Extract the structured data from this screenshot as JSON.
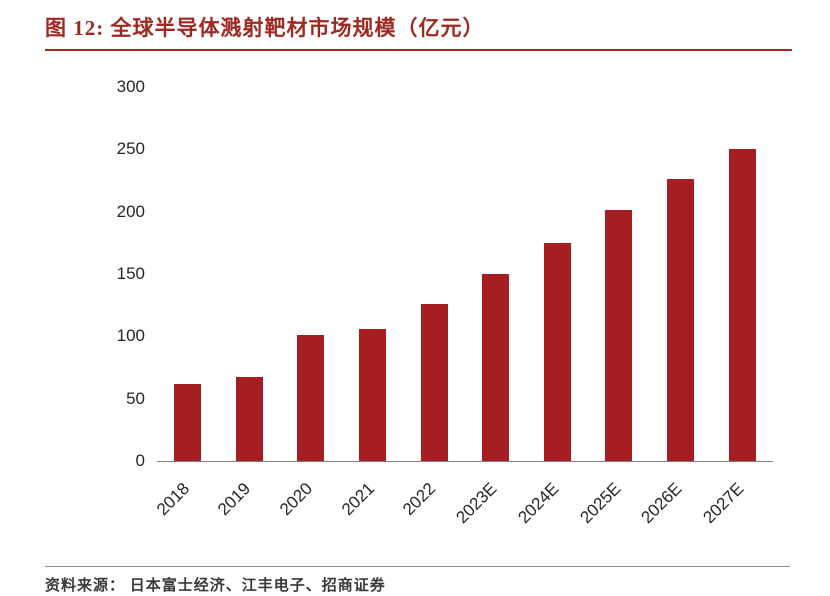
{
  "header": {
    "title": "图 12:  全球半导体溅射靶材市场规模（亿元）"
  },
  "footer": {
    "source": "资料来源：  日本富士经济、江丰电子、招商证券"
  },
  "colors": {
    "accent": "#9E2921",
    "bar": "#A71E22"
  },
  "chart_data": {
    "type": "bar",
    "title": "全球半导体溅射靶材市场规模（亿元）",
    "categories": [
      "2018",
      "2019",
      "2020",
      "2021",
      "2022",
      "2023E",
      "2024E",
      "2025E",
      "2026E",
      "2027E"
    ],
    "values": [
      62,
      67,
      101,
      106,
      126,
      150,
      175,
      201,
      226,
      250
    ],
    "xlabel": "",
    "ylabel": "",
    "ylim": [
      0,
      300
    ],
    "yticks": [
      0,
      50,
      100,
      150,
      200,
      250,
      300
    ],
    "grid": false,
    "legend": false,
    "bar_color": "#A71E22"
  }
}
